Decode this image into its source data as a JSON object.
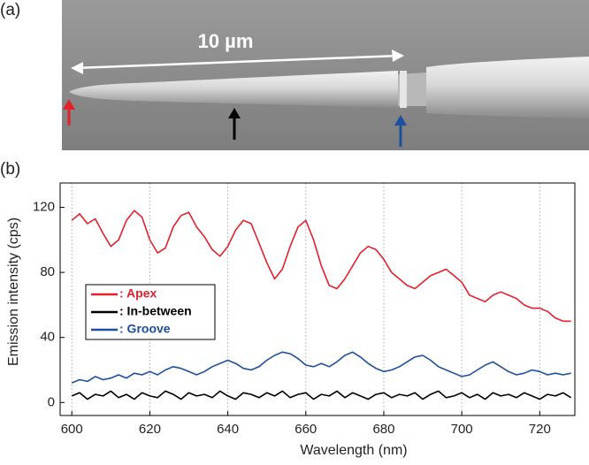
{
  "figure": {
    "panel_a_label": "(a)",
    "scale_text": "10 µm",
    "panel_b_label": "(b)"
  },
  "chart_data": {
    "type": "line",
    "xlabel": "Wavelength (nm)",
    "ylabel": "Emission intensity (cps)",
    "xlim": [
      597,
      729
    ],
    "ylim": [
      -8,
      135
    ],
    "xticks": [
      600,
      620,
      640,
      660,
      680,
      700,
      720
    ],
    "yticks": [
      0,
      40,
      80,
      120
    ],
    "grid": true,
    "legend": "lower-left",
    "x": [
      600,
      602,
      604,
      606,
      608,
      610,
      612,
      614,
      616,
      618,
      620,
      622,
      624,
      626,
      628,
      630,
      632,
      634,
      636,
      638,
      640,
      642,
      644,
      646,
      648,
      650,
      652,
      654,
      656,
      658,
      660,
      662,
      664,
      666,
      668,
      670,
      672,
      674,
      676,
      678,
      680,
      682,
      684,
      686,
      688,
      690,
      692,
      694,
      696,
      698,
      700,
      702,
      704,
      706,
      708,
      710,
      712,
      714,
      716,
      718,
      720,
      722,
      724,
      726,
      728
    ],
    "series": [
      {
        "name": ": Apex",
        "color": "#e3202b",
        "values": [
          112,
          116,
          110,
          113,
          104,
          96,
          100,
          112,
          118,
          114,
          100,
          92,
          95,
          108,
          115,
          117,
          108,
          102,
          94,
          90,
          96,
          106,
          112,
          110,
          98,
          86,
          76,
          82,
          96,
          108,
          112,
          100,
          84,
          72,
          70,
          76,
          84,
          92,
          96,
          94,
          88,
          80,
          76,
          72,
          70,
          74,
          78,
          80,
          82,
          78,
          74,
          66,
          64,
          62,
          66,
          68,
          66,
          64,
          60,
          58,
          58,
          56,
          52,
          50,
          50
        ]
      },
      {
        "name": ": In-between",
        "color": "#000000",
        "values": [
          4,
          6,
          2,
          5,
          4,
          7,
          3,
          5,
          2,
          6,
          4,
          3,
          7,
          5,
          2,
          6,
          4,
          5,
          3,
          7,
          4,
          2,
          6,
          5,
          3,
          6,
          4,
          7,
          3,
          5,
          6,
          2,
          5,
          4,
          7,
          3,
          6,
          4,
          2,
          5,
          6,
          3,
          5,
          4,
          6,
          2,
          5,
          7,
          3,
          4,
          6,
          3,
          5,
          2,
          6,
          4,
          5,
          3,
          6,
          4,
          2,
          5,
          4,
          6,
          3
        ]
      },
      {
        "name": ": Groove",
        "color": "#1c4f9e",
        "values": [
          12,
          14,
          13,
          16,
          14,
          15,
          17,
          15,
          18,
          17,
          19,
          17,
          20,
          22,
          21,
          19,
          17,
          19,
          22,
          24,
          26,
          24,
          21,
          20,
          22,
          26,
          29,
          31,
          30,
          27,
          23,
          22,
          24,
          22,
          25,
          29,
          31,
          28,
          24,
          21,
          19,
          20,
          22,
          25,
          28,
          29,
          26,
          22,
          20,
          18,
          16,
          17,
          20,
          23,
          25,
          22,
          19,
          17,
          18,
          20,
          19,
          17,
          18,
          17,
          18
        ]
      }
    ]
  }
}
